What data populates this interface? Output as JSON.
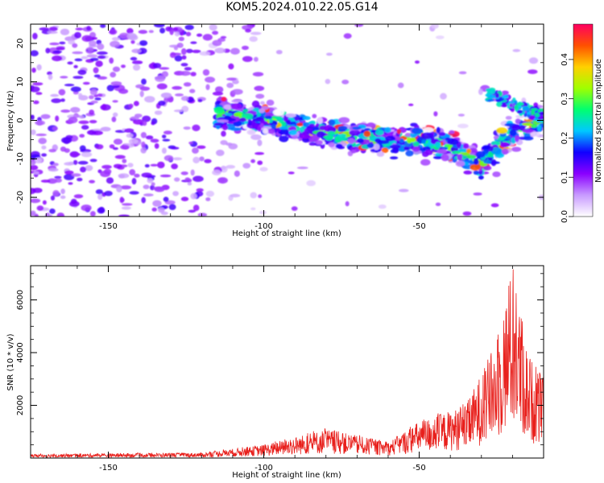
{
  "title": "KOM5.2024.010.22.05.G14",
  "chart_data": [
    {
      "type": "heatmap",
      "xlabel": "Height of straight line (km)",
      "ylabel": "Frequency (Hz)",
      "xlim": [
        -175,
        -10
      ],
      "ylim": [
        -25,
        25
      ],
      "xticks": [
        -150,
        -100,
        -50
      ],
      "yticks": [
        -20,
        -10,
        0,
        10,
        20
      ],
      "colorbar": {
        "label": "Normalized spectral amplitude",
        "range": [
          0,
          0.49
        ],
        "ticks": [
          "0.0",
          "0.1",
          "0.2",
          "0.3",
          "0.4"
        ],
        "colors": [
          "#ffffff",
          "#c89bff",
          "#8a00ff",
          "#1000ff",
          "#00c8ff",
          "#00ff70",
          "#a0ff00",
          "#ffd000",
          "#ff5000",
          "#ff0060"
        ]
      },
      "ridge": [
        {
          "x": -112,
          "f": 1.5
        },
        {
          "x": -100,
          "f": 0.5
        },
        {
          "x": -90,
          "f": -1.5
        },
        {
          "x": -80,
          "f": -3
        },
        {
          "x": -70,
          "f": -4.5
        },
        {
          "x": -60,
          "f": -5.5
        },
        {
          "x": -50,
          "f": -5
        },
        {
          "x": -40,
          "f": -7
        },
        {
          "x": -30,
          "f": -11
        },
        {
          "x": -20,
          "f": -3
        },
        {
          "x": -12,
          "f": 0
        }
      ]
    },
    {
      "type": "line",
      "xlabel": "Height of straight line (km)",
      "ylabel": "SNR (10 * v/v)",
      "xlim": [
        -175,
        -10
      ],
      "ylim": [
        0,
        7300
      ],
      "xticks": [
        -150,
        -100,
        -50
      ],
      "yticks": [
        2000,
        4000,
        6000
      ],
      "color": "#e8201c",
      "envelope": [
        {
          "x": -175,
          "v": 150
        },
        {
          "x": -120,
          "v": 200
        },
        {
          "x": -100,
          "v": 500
        },
        {
          "x": -80,
          "v": 1100
        },
        {
          "x": -60,
          "v": 600
        },
        {
          "x": -50,
          "v": 1400
        },
        {
          "x": -35,
          "v": 2000
        },
        {
          "x": -25,
          "v": 4500
        },
        {
          "x": -20,
          "v": 7300
        },
        {
          "x": -15,
          "v": 4000
        },
        {
          "x": -10,
          "v": 3000
        }
      ]
    }
  ]
}
